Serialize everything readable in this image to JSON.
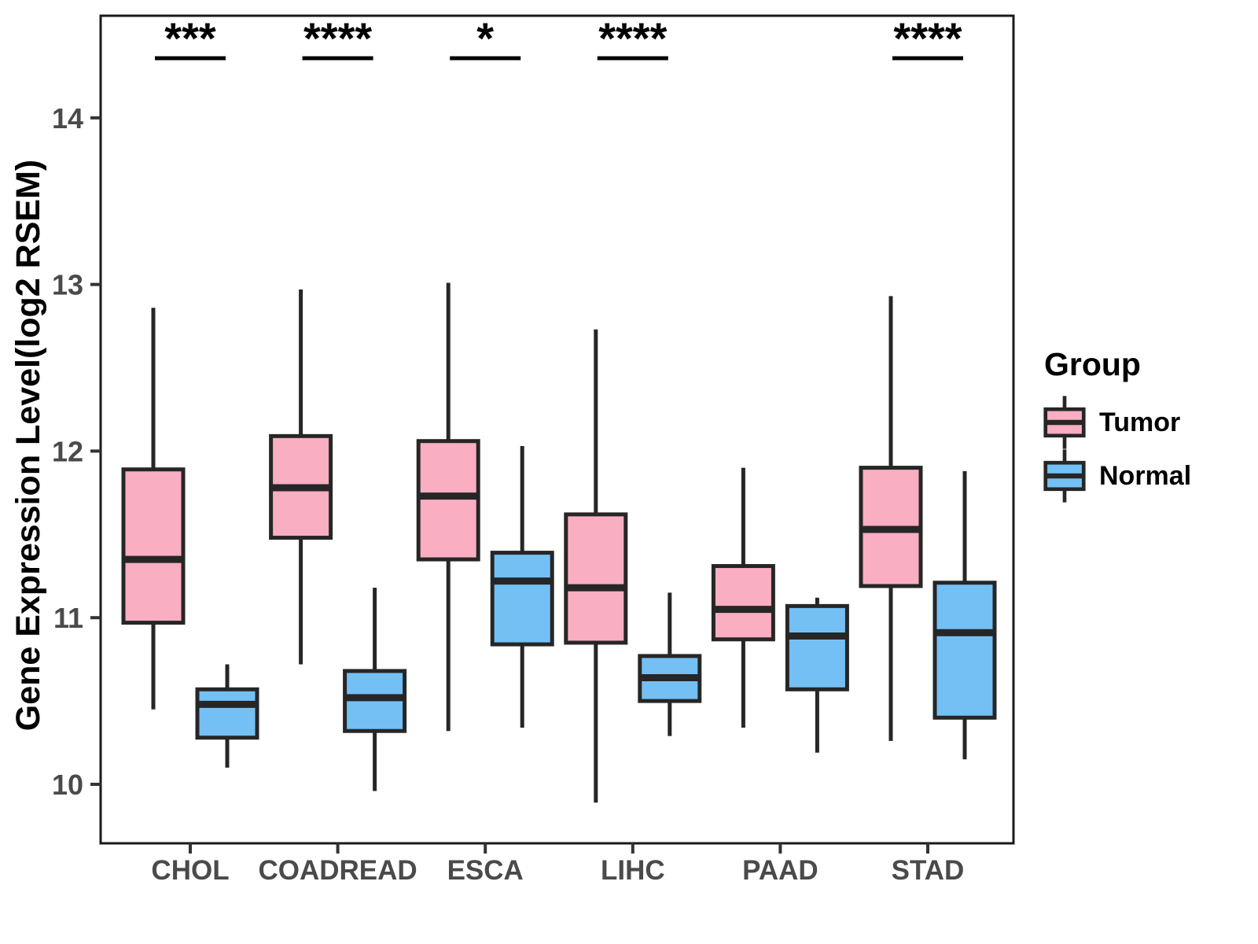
{
  "chart_data": {
    "type": "boxplot",
    "title": "",
    "xlabel": "",
    "ylabel": "Gene Expression Level(log2 RSEM)",
    "categories": [
      "CHOL",
      "COADREAD",
      "ESCA",
      "LIHC",
      "PAAD",
      "STAD"
    ],
    "yticks": [
      10,
      11,
      12,
      13,
      14
    ],
    "ylim": [
      9.65,
      14.61
    ],
    "grid": false,
    "legend": {
      "title": "Group",
      "position": "right-center",
      "entries": [
        "Tumor",
        "Normal"
      ]
    },
    "series": [
      {
        "name": "Tumor",
        "fill": "#FAAEC1",
        "boxes": [
          {
            "category": "CHOL",
            "whisker_low": 10.45,
            "q1": 10.97,
            "median": 11.35,
            "q3": 11.89,
            "whisker_high": 12.86
          },
          {
            "category": "COADREAD",
            "whisker_low": 10.72,
            "q1": 11.48,
            "median": 11.78,
            "q3": 12.09,
            "whisker_high": 12.97
          },
          {
            "category": "ESCA",
            "whisker_low": 10.32,
            "q1": 11.35,
            "median": 11.73,
            "q3": 12.06,
            "whisker_high": 13.01
          },
          {
            "category": "LIHC",
            "whisker_low": 9.89,
            "q1": 10.85,
            "median": 11.18,
            "q3": 11.62,
            "whisker_high": 12.73
          },
          {
            "category": "PAAD",
            "whisker_low": 10.34,
            "q1": 10.87,
            "median": 11.05,
            "q3": 11.31,
            "whisker_high": 11.9
          },
          {
            "category": "STAD",
            "whisker_low": 10.26,
            "q1": 11.19,
            "median": 11.53,
            "q3": 11.9,
            "whisker_high": 12.93
          }
        ]
      },
      {
        "name": "Normal",
        "fill": "#74C0F4",
        "boxes": [
          {
            "category": "CHOL",
            "whisker_low": 10.1,
            "q1": 10.28,
            "median": 10.48,
            "q3": 10.57,
            "whisker_high": 10.72
          },
          {
            "category": "COADREAD",
            "whisker_low": 9.96,
            "q1": 10.32,
            "median": 10.52,
            "q3": 10.68,
            "whisker_high": 11.18
          },
          {
            "category": "ESCA",
            "whisker_low": 10.34,
            "q1": 10.84,
            "median": 11.22,
            "q3": 11.39,
            "whisker_high": 12.03
          },
          {
            "category": "LIHC",
            "whisker_low": 10.29,
            "q1": 10.5,
            "median": 10.64,
            "q3": 10.77,
            "whisker_high": 11.15
          },
          {
            "category": "PAAD",
            "whisker_low": 10.19,
            "q1": 10.57,
            "median": 10.89,
            "q3": 11.07,
            "whisker_high": 11.12
          },
          {
            "category": "STAD",
            "whisker_low": 10.15,
            "q1": 10.4,
            "median": 10.91,
            "q3": 11.21,
            "whisker_high": 11.88
          }
        ]
      }
    ],
    "significance": [
      {
        "category": "CHOL",
        "label": "***"
      },
      {
        "category": "COADREAD",
        "label": "****"
      },
      {
        "category": "ESCA",
        "label": "*"
      },
      {
        "category": "LIHC",
        "label": "****"
      },
      {
        "category": "STAD",
        "label": "****"
      }
    ],
    "colors": {
      "box_outline": "#262626",
      "median_line": "#262626",
      "panel_border": "#1A1A1A",
      "axis_text": "#4A4A4A",
      "tick_mark": "#333333",
      "annotation": "#000000"
    }
  }
}
